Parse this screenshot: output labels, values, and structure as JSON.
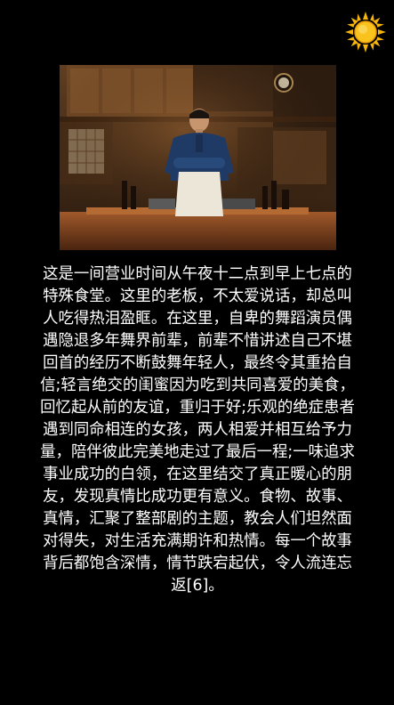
{
  "theme_toggle": {
    "icon": "sun-icon",
    "color": "#f6b40e"
  },
  "hero_image": {
    "subject": "chef-in-kitchen-photo"
  },
  "description": {
    "text": "这是一间营业时间从午夜十二点到早上七点的特殊食堂。这里的老板，不太爱说话，却总叫人吃得热泪盈眶。在这里，自卑的舞蹈演员偶遇隐退多年舞界前辈，前辈不惜讲述自己不堪回首的经历不断鼓舞年轻人，最终令其重拾自信;轻言绝交的闺蜜因为吃到共同喜爱的美食，回忆起从前的友谊，重归于好;乐观的绝症患者遇到同命相连的女孩，两人相爱并相互给予力量，陪伴彼此完美地走过了最后一程;一味追求事业成功的白领，在这里结交了真正暖心的朋友，发现真情比成功更有意义。食物、故事、真情，汇聚了整部剧的主题，教会人们坦然面对得失，对生活充满期许和热情。每一个故事背后都饱含深情，情节跌宕起伏，令人流连忘返[6]。"
  }
}
